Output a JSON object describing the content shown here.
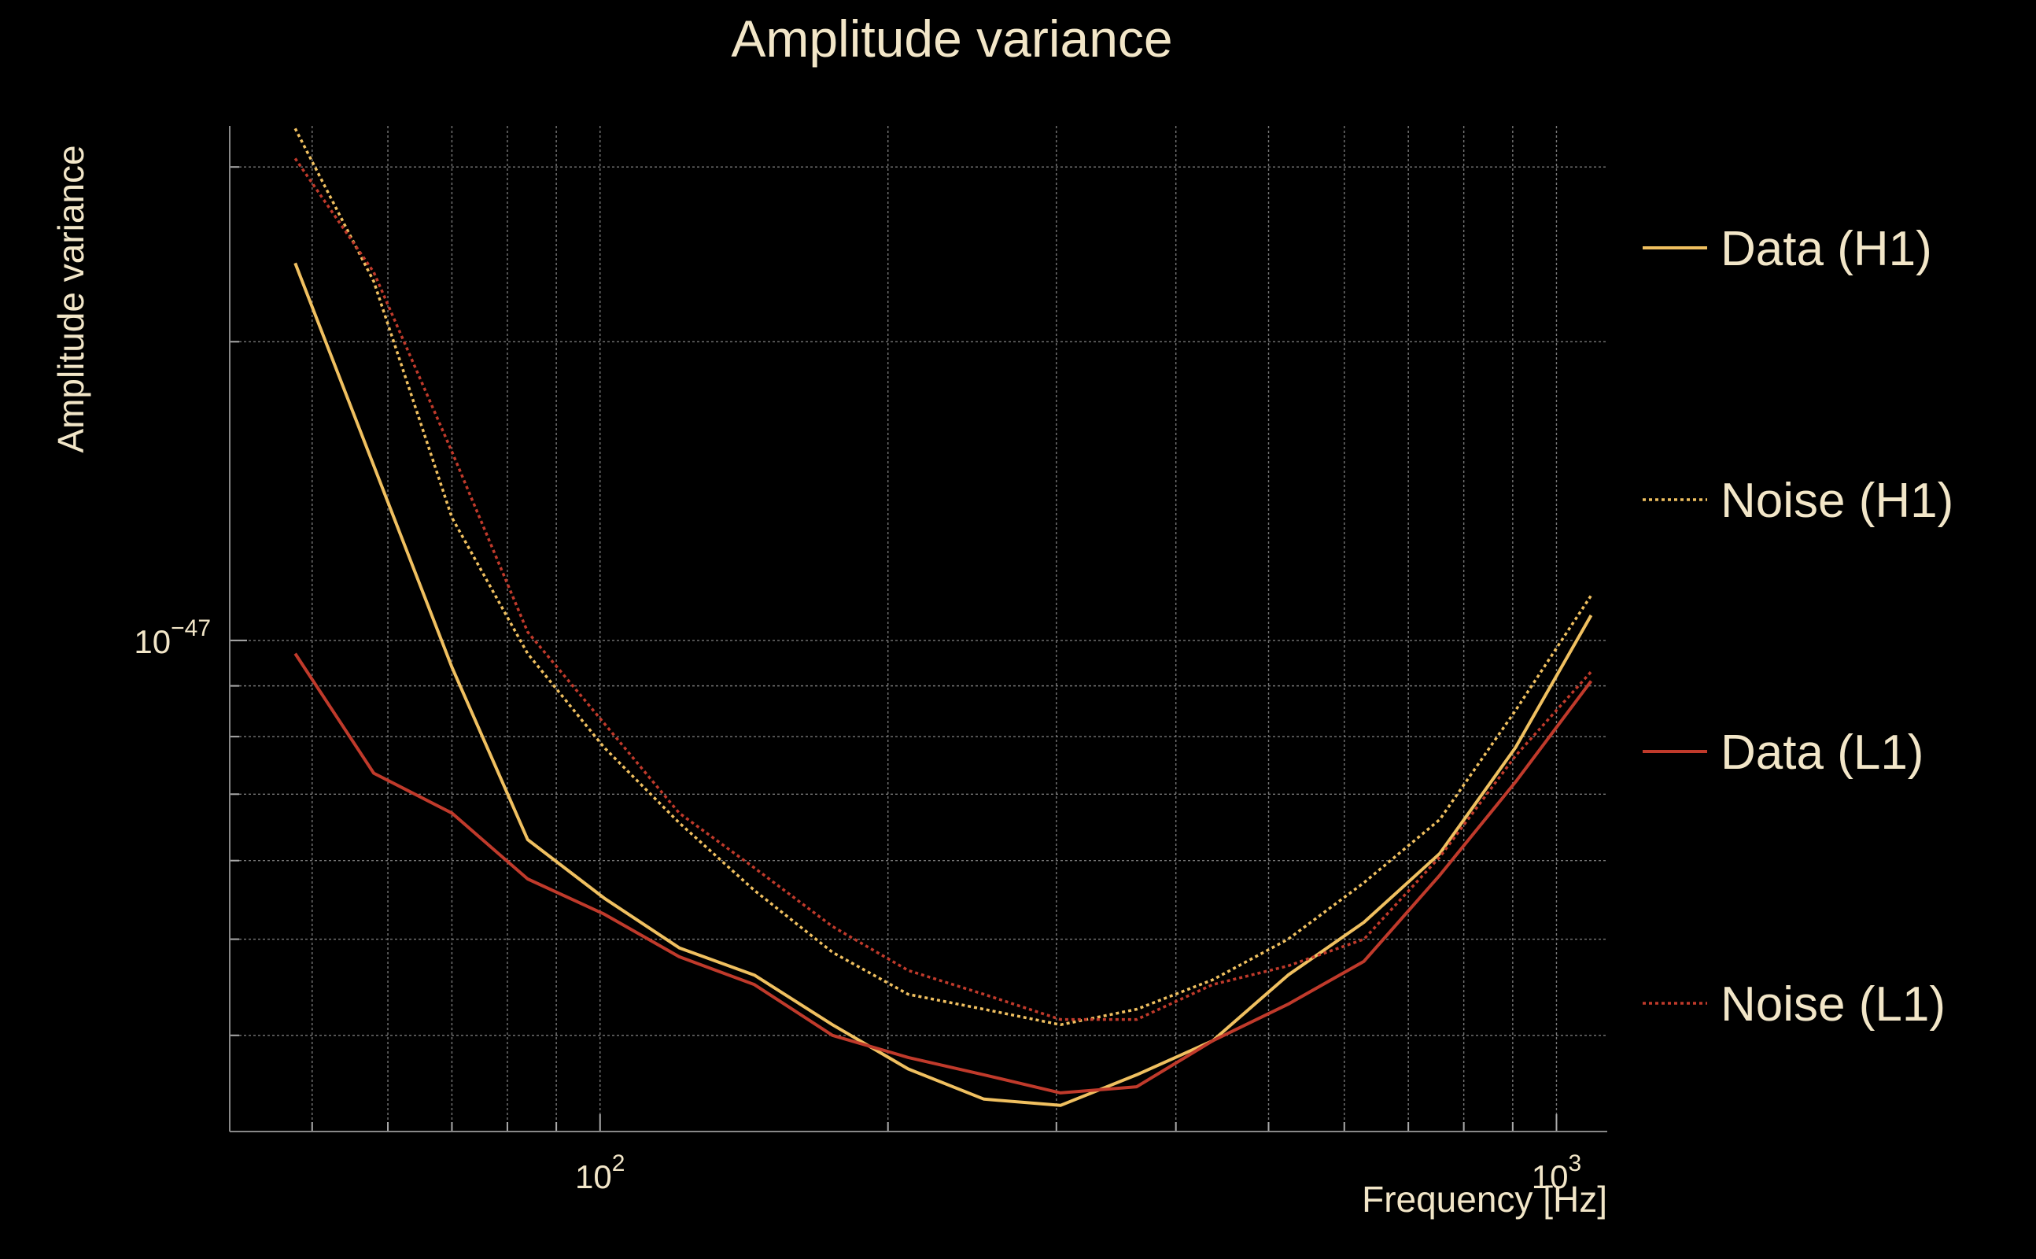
{
  "chart_data": {
    "type": "line",
    "title": "Amplitude variance",
    "xlabel": "Frequency [Hz]",
    "ylabel": "Amplitude variance",
    "xscale": "log",
    "yscale": "log",
    "xlim": [
      41,
      1130
    ],
    "ylim": [
      3.2e-48,
      3.3e-47
    ],
    "grid": true,
    "legend_position": "right",
    "x_tick_labels": [
      {
        "value": 100,
        "base": "10",
        "exp": "2"
      },
      {
        "value": 1000,
        "base": "10",
        "exp": "3"
      }
    ],
    "y_tick_labels": [
      {
        "value": 1e-47,
        "base": "10",
        "exp": "−47"
      }
    ],
    "x": [
      48,
      58,
      70,
      84,
      101,
      121,
      145,
      175,
      210,
      252,
      303,
      364,
      437,
      524,
      629,
      755,
      906,
      1087
    ],
    "series": [
      {
        "name": "Data (H1)",
        "color": "#f0c060",
        "style": "solid",
        "values": [
          2.4e-47,
          1.5e-47,
          9.4e-48,
          6.3e-48,
          5.5e-48,
          4.9e-48,
          4.6e-48,
          4.1e-48,
          3.7e-48,
          3.45e-48,
          3.4e-48,
          3.65e-48,
          3.95e-48,
          4.6e-48,
          5.2e-48,
          6.1e-48,
          7.8e-48,
          1.06e-47
        ]
      },
      {
        "name": "Noise (H1)",
        "color": "#f0c060",
        "style": "dotted",
        "values": [
          3.28e-47,
          2.3e-47,
          1.33e-47,
          9.7e-48,
          7.8e-48,
          6.55e-48,
          5.6e-48,
          4.85e-48,
          4.4e-48,
          4.25e-48,
          4.1e-48,
          4.25e-48,
          4.55e-48,
          5e-48,
          5.7e-48,
          6.6e-48,
          8.5e-48,
          1.11e-47
        ]
      },
      {
        "name": "Data (L1)",
        "color": "#c03a2b",
        "style": "solid",
        "values": [
          9.7e-48,
          7.35e-48,
          6.7e-48,
          5.75e-48,
          5.3e-48,
          4.8e-48,
          4.5e-48,
          4e-48,
          3.8e-48,
          3.65e-48,
          3.5e-48,
          3.55e-48,
          3.95e-48,
          4.3e-48,
          4.75e-48,
          5.8e-48,
          7.2e-48,
          9.1e-48
        ]
      },
      {
        "name": "Noise (L1)",
        "color": "#c03a2b",
        "style": "dotted",
        "values": [
          3.06e-47,
          2.35e-47,
          1.55e-47,
          1.02e-47,
          8.25e-48,
          6.7e-48,
          5.9e-48,
          5.15e-48,
          4.65e-48,
          4.4e-48,
          4.15e-48,
          4.15e-48,
          4.5e-48,
          4.7e-48,
          5e-48,
          6.05e-48,
          7.65e-48,
          9.3e-48
        ]
      }
    ]
  }
}
